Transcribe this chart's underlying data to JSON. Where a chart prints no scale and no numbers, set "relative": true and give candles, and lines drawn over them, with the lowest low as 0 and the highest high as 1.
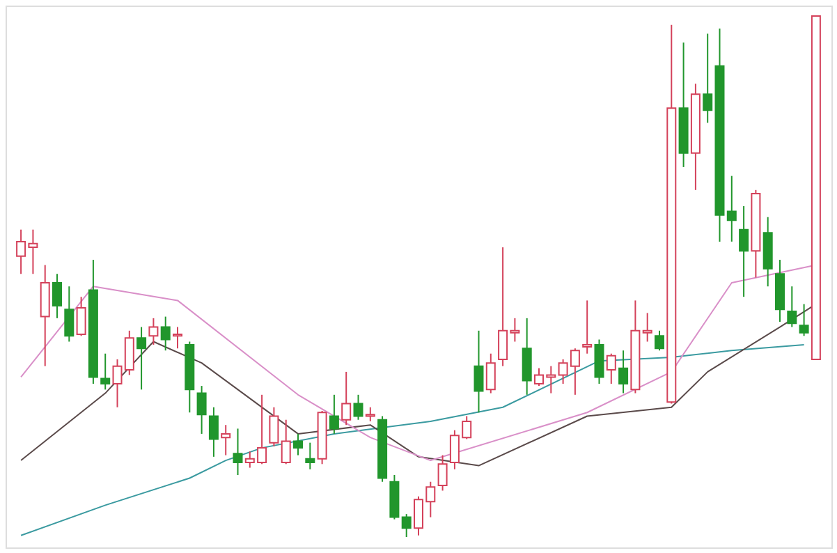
{
  "chart_data": {
    "type": "candlestick",
    "relative": true,
    "categories": [
      null,
      null,
      null,
      null,
      null,
      null,
      null,
      null,
      null,
      null,
      null,
      null,
      null,
      null,
      null,
      null,
      null,
      null,
      null,
      null,
      null,
      null,
      null,
      null,
      null,
      null,
      null,
      null,
      null,
      null,
      null,
      null,
      null,
      null,
      null,
      null,
      null,
      null,
      null,
      null,
      null,
      null,
      null,
      null,
      null,
      null,
      null,
      null,
      null,
      null,
      null,
      null,
      null,
      null,
      null,
      null,
      null,
      null,
      null,
      null,
      null,
      null,
      null,
      null,
      null,
      null,
      null
    ],
    "ohlc": [
      [
        0.539,
        0.59,
        0.505,
        0.567
      ],
      [
        0.556,
        0.59,
        0.505,
        0.563
      ],
      [
        0.423,
        0.522,
        0.328,
        0.488
      ],
      [
        0.488,
        0.505,
        0.42,
        0.444
      ],
      [
        0.437,
        0.481,
        0.375,
        0.386
      ],
      [
        0.389,
        0.461,
        0.386,
        0.44
      ],
      [
        0.474,
        0.532,
        0.294,
        0.307
      ],
      [
        0.304,
        0.352,
        0.283,
        0.294
      ],
      [
        0.294,
        0.341,
        0.249,
        0.328
      ],
      [
        0.321,
        0.396,
        0.311,
        0.382
      ],
      [
        0.382,
        0.403,
        0.283,
        0.362
      ],
      [
        0.386,
        0.42,
        0.369,
        0.403
      ],
      [
        0.403,
        0.423,
        0.358,
        0.379
      ],
      [
        0.386,
        0.403,
        0.362,
        0.389
      ],
      [
        0.369,
        0.375,
        0.239,
        0.283
      ],
      [
        0.276,
        0.29,
        0.198,
        0.235
      ],
      [
        0.232,
        0.249,
        0.154,
        0.188
      ],
      [
        0.191,
        0.215,
        0.157,
        0.198
      ],
      [
        0.16,
        0.208,
        0.119,
        0.143
      ],
      [
        0.143,
        0.164,
        0.133,
        0.15
      ],
      [
        0.143,
        0.273,
        0.14,
        0.171
      ],
      [
        0.181,
        0.249,
        0.174,
        0.232
      ],
      [
        0.143,
        0.225,
        0.14,
        0.184
      ],
      [
        0.184,
        0.198,
        0.157,
        0.171
      ],
      [
        0.15,
        0.181,
        0.13,
        0.143
      ],
      [
        0.15,
        0.242,
        0.14,
        0.239
      ],
      [
        0.232,
        0.273,
        0.198,
        0.208
      ],
      [
        0.225,
        0.317,
        0.215,
        0.256
      ],
      [
        0.256,
        0.273,
        0.225,
        0.232
      ],
      [
        0.232,
        0.249,
        0.222,
        0.235
      ],
      [
        0.225,
        0.232,
        0.106,
        0.113
      ],
      [
        0.106,
        0.119,
        0.034,
        0.038
      ],
      [
        0.038,
        0.044,
        0,
        0.017
      ],
      [
        0.017,
        0.078,
        0.003,
        0.072
      ],
      [
        0.068,
        0.106,
        0.038,
        0.096
      ],
      [
        0.099,
        0.157,
        0.089,
        0.14
      ],
      [
        0.143,
        0.205,
        0.13,
        0.195
      ],
      [
        0.191,
        0.232,
        0.188,
        0.222
      ],
      [
        0.328,
        0.396,
        0.239,
        0.28
      ],
      [
        0.283,
        0.352,
        0.276,
        0.334
      ],
      [
        0.341,
        0.556,
        0.328,
        0.396
      ],
      [
        0.392,
        0.42,
        0.375,
        0.396
      ],
      [
        0.362,
        0.42,
        0.273,
        0.3
      ],
      [
        0.294,
        0.324,
        0.29,
        0.311
      ],
      [
        0.307,
        0.328,
        0.276,
        0.311
      ],
      [
        0.311,
        0.341,
        0.294,
        0.334
      ],
      [
        0.328,
        0.362,
        0.273,
        0.358
      ],
      [
        0.365,
        0.454,
        0.352,
        0.369
      ],
      [
        0.369,
        0.379,
        0.294,
        0.307
      ],
      [
        0.321,
        0.352,
        0.294,
        0.348
      ],
      [
        0.324,
        0.358,
        0.276,
        0.294
      ],
      [
        0.283,
        0.454,
        0.276,
        0.396
      ],
      [
        0.392,
        0.43,
        0.375,
        0.396
      ],
      [
        0.386,
        0.396,
        0.358,
        0.362
      ],
      [
        0.259,
        0.983,
        0.256,
        0.823
      ],
      [
        0.823,
        0.949,
        0.71,
        0.737
      ],
      [
        0.737,
        0.87,
        0.666,
        0.85
      ],
      [
        0.85,
        0.966,
        0.795,
        0.819
      ],
      [
        0.904,
        0.976,
        0.567,
        0.618
      ],
      [
        0.625,
        0.693,
        0.567,
        0.608
      ],
      [
        0.59,
        0.635,
        0.461,
        0.549
      ],
      [
        0.549,
        0.666,
        0.498,
        0.659
      ],
      [
        0.584,
        0.614,
        0.481,
        0.515
      ],
      [
        0.505,
        0.532,
        0.413,
        0.437
      ],
      [
        0.433,
        0.481,
        0.403,
        0.41
      ],
      [
        0.406,
        0.447,
        0.386,
        0.392
      ],
      [
        0.341,
        1,
        0.341,
        1
      ]
    ],
    "series": [
      {
        "type": "line",
        "color": "#3a9aa0",
        "values": [
          0.003,
          null,
          null,
          null,
          null,
          null,
          null,
          0.061,
          null,
          null,
          null,
          null,
          null,
          null,
          0.113,
          null,
          null,
          0.147,
          null,
          null,
          0.171,
          null,
          null,
          null,
          null,
          null,
          0.198,
          null,
          null,
          null,
          null,
          null,
          null,
          null,
          0.222,
          null,
          null,
          null,
          null,
          null,
          0.249,
          null,
          null,
          null,
          null,
          null,
          null,
          null,
          0.338,
          null,
          null,
          null,
          null,
          null,
          0.345,
          null,
          null,
          null,
          null,
          0.358,
          null,
          null,
          null,
          null,
          null,
          0.369,
          null
        ]
      },
      {
        "type": "line",
        "color": "#5a4a4a",
        "values": [
          0.147,
          null,
          null,
          null,
          null,
          null,
          null,
          0.276,
          null,
          null,
          null,
          0.375,
          null,
          null,
          null,
          0.334,
          null,
          null,
          null,
          null,
          null,
          null,
          null,
          0.198,
          null,
          null,
          null,
          null,
          null,
          0.215,
          null,
          null,
          null,
          0.154,
          null,
          null,
          null,
          null,
          0.137,
          null,
          null,
          null,
          null,
          null,
          null,
          null,
          null,
          0.232,
          null,
          null,
          null,
          null,
          null,
          null,
          0.249,
          null,
          null,
          0.317,
          null,
          null,
          null,
          null,
          null,
          0.403,
          null,
          null,
          0.447
        ]
      },
      {
        "type": "line",
        "color": "#d98fc8",
        "values": [
          0.307,
          null,
          null,
          null,
          null,
          null,
          0.481,
          null,
          null,
          null,
          null,
          null,
          null,
          0.454,
          null,
          null,
          null,
          null,
          null,
          null,
          null,
          null,
          null,
          0.273,
          null,
          null,
          null,
          null,
          null,
          0.191,
          null,
          null,
          null,
          null,
          0.147,
          null,
          null,
          null,
          null,
          null,
          null,
          null,
          null,
          null,
          null,
          null,
          null,
          0.239,
          null,
          null,
          null,
          null,
          null,
          null,
          0.317,
          null,
          null,
          null,
          null,
          0.488,
          null,
          null,
          null,
          null,
          null,
          null,
          0.522
        ]
      }
    ]
  }
}
